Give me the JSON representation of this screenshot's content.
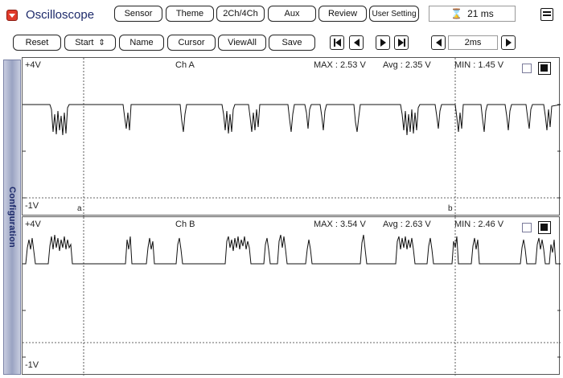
{
  "header": {
    "title": "Oscilloscope",
    "tabs": [
      {
        "label": "Sensor"
      },
      {
        "label": "Theme"
      },
      {
        "label": "2Ch/4Ch"
      },
      {
        "label": "Aux"
      },
      {
        "label": "Review"
      },
      {
        "label": "User Setting"
      }
    ],
    "sample_time": "21 ms",
    "icons": {
      "app": "red-square-icon",
      "time": "hourglass-icon",
      "menu": "menu-icon"
    }
  },
  "toolbar": {
    "reset": "Reset",
    "start": "Start",
    "start_arrows": "⇕",
    "name": "Name",
    "cursor": "Cursor",
    "viewall": "ViewAll",
    "save": "Save",
    "timebase": "2ms"
  },
  "sidebar": {
    "label": "Configuration"
  },
  "channels": [
    {
      "name": "Ch A",
      "top_label": "+4V",
      "bottom_label": "-1V",
      "max": "MAX : 2.53 V",
      "avg": "Avg : 2.35 V",
      "min": "MIN : 1.45 V",
      "cursor_a": "a",
      "cursor_b": "b"
    },
    {
      "name": "Ch B",
      "top_label": "+4V",
      "bottom_label": "-1V",
      "max": "MAX : 3.54 V",
      "avg": "Avg : 2.63 V",
      "min": "MIN : 2.46 V"
    }
  ],
  "colors": {
    "sidebar": "#9aa3c2",
    "trace": "#111111",
    "app_icon": "#e03a2a"
  }
}
